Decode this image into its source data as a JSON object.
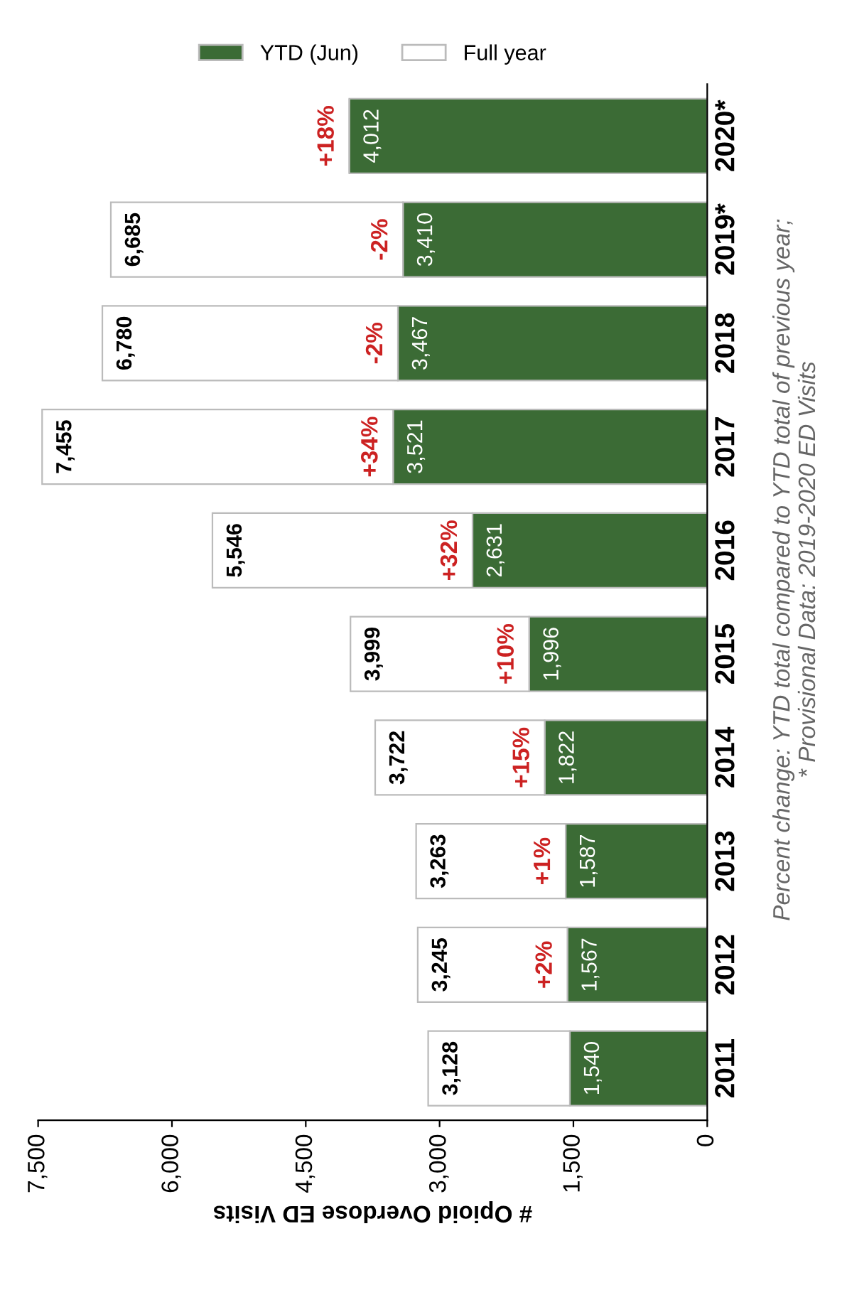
{
  "chart_data": {
    "type": "bar",
    "orientation": "horizontal",
    "stacked": true,
    "categories": [
      "2020*",
      "2019*",
      "2018",
      "2017",
      "2016",
      "2015",
      "2014",
      "2013",
      "2012",
      "2011"
    ],
    "series": [
      {
        "name": "YTD (Jun)",
        "color": "#3b6b35",
        "values": [
          4012,
          3410,
          3467,
          3521,
          2631,
          1996,
          1822,
          1587,
          1567,
          1540
        ],
        "value_labels": [
          "4,012",
          "3,410",
          "3,467",
          "3,521",
          "2,631",
          "1,996",
          "1,822",
          "1,587",
          "1,567",
          "1,540"
        ]
      },
      {
        "name": "Full year",
        "color": "#ffffff",
        "values": [
          null,
          3275,
          3313,
          3934,
          2915,
          2003,
          1900,
          1676,
          1678,
          1588
        ]
      }
    ],
    "totals": [
      null,
      "6,685",
      "6,780",
      "7,455",
      "5,546",
      "3,999",
      "3,722",
      "3,263",
      "3,245",
      "3,128"
    ],
    "xlim": [
      7500,
      0
    ],
    "xticks": [
      {
        "value": 0,
        "label": "0"
      },
      {
        "value": 1500,
        "label": "1,500"
      },
      {
        "value": 3000,
        "label": "3,000"
      },
      {
        "value": 4500,
        "label": "4,500"
      },
      {
        "value": 6000,
        "label": "6,000"
      },
      {
        "value": 7500,
        "label": "7,500"
      }
    ],
    "xlabel": "# Opioid Overdose ED Visits",
    "legend": "top",
    "grid": false,
    "annotations": [
      "+18%",
      "-2%",
      "-2%",
      "+34%",
      "+32%",
      "+10%",
      "+15%",
      "+1%",
      "+2%",
      "Percent change: YTD total compared to YTD total of previous year;",
      "* Provisional Data: 2019-2020 ED Visits"
    ]
  }
}
